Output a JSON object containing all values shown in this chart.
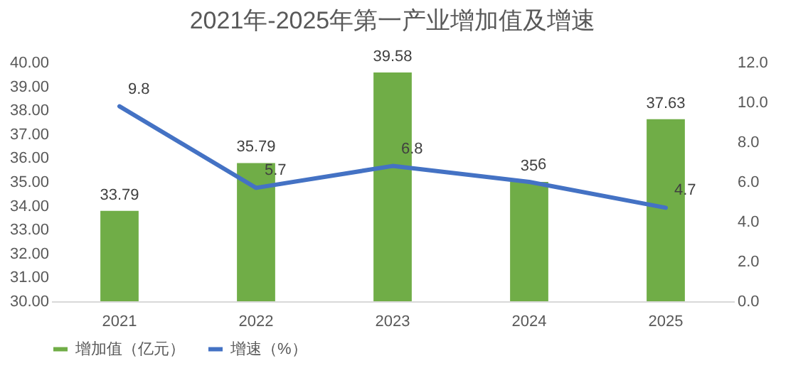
{
  "chart_data": {
    "type": "bar",
    "title": "2021年-2025年第一产业增加值及增速",
    "categories": [
      "2021",
      "2022",
      "2023",
      "2024",
      "2025"
    ],
    "series": [
      {
        "name": "增加值（亿元）",
        "color": "#70ad47",
        "values": [
          33.79,
          35.79,
          39.58,
          35,
          37.63
        ]
      },
      {
        "name": "增速（%）",
        "type": "line",
        "axis": "y2",
        "color": "#4472c4",
        "values": [
          9.8,
          5.7,
          6.8,
          6,
          4.7
        ]
      }
    ],
    "ylim": [
      30,
      40
    ],
    "yticks": [
      {
        "value": 30,
        "label": "30.00"
      },
      {
        "value": 31,
        "label": "31.00"
      },
      {
        "value": 32,
        "label": "32.00"
      },
      {
        "value": 33,
        "label": "33.00"
      },
      {
        "value": 34,
        "label": "34.00"
      },
      {
        "value": 35,
        "label": "35.00"
      },
      {
        "value": 36,
        "label": "36.00"
      },
      {
        "value": 37,
        "label": "37.00"
      },
      {
        "value": 38,
        "label": "38.00"
      },
      {
        "value": 39,
        "label": "39.00"
      },
      {
        "value": 40,
        "label": "40.00"
      }
    ],
    "y2lim": [
      0,
      12
    ],
    "y2ticks": [
      {
        "value": 0,
        "label": "0.0"
      },
      {
        "value": 2,
        "label": "2.0"
      },
      {
        "value": 4,
        "label": "4.0"
      },
      {
        "value": 6,
        "label": "6.0"
      },
      {
        "value": 8,
        "label": "8.0"
      },
      {
        "value": 10,
        "label": "10.0"
      },
      {
        "value": 12,
        "label": "12.0"
      }
    ],
    "data_labels": true,
    "legend": "bottom",
    "marker": "none",
    "line_style": "solid",
    "grid": false
  }
}
